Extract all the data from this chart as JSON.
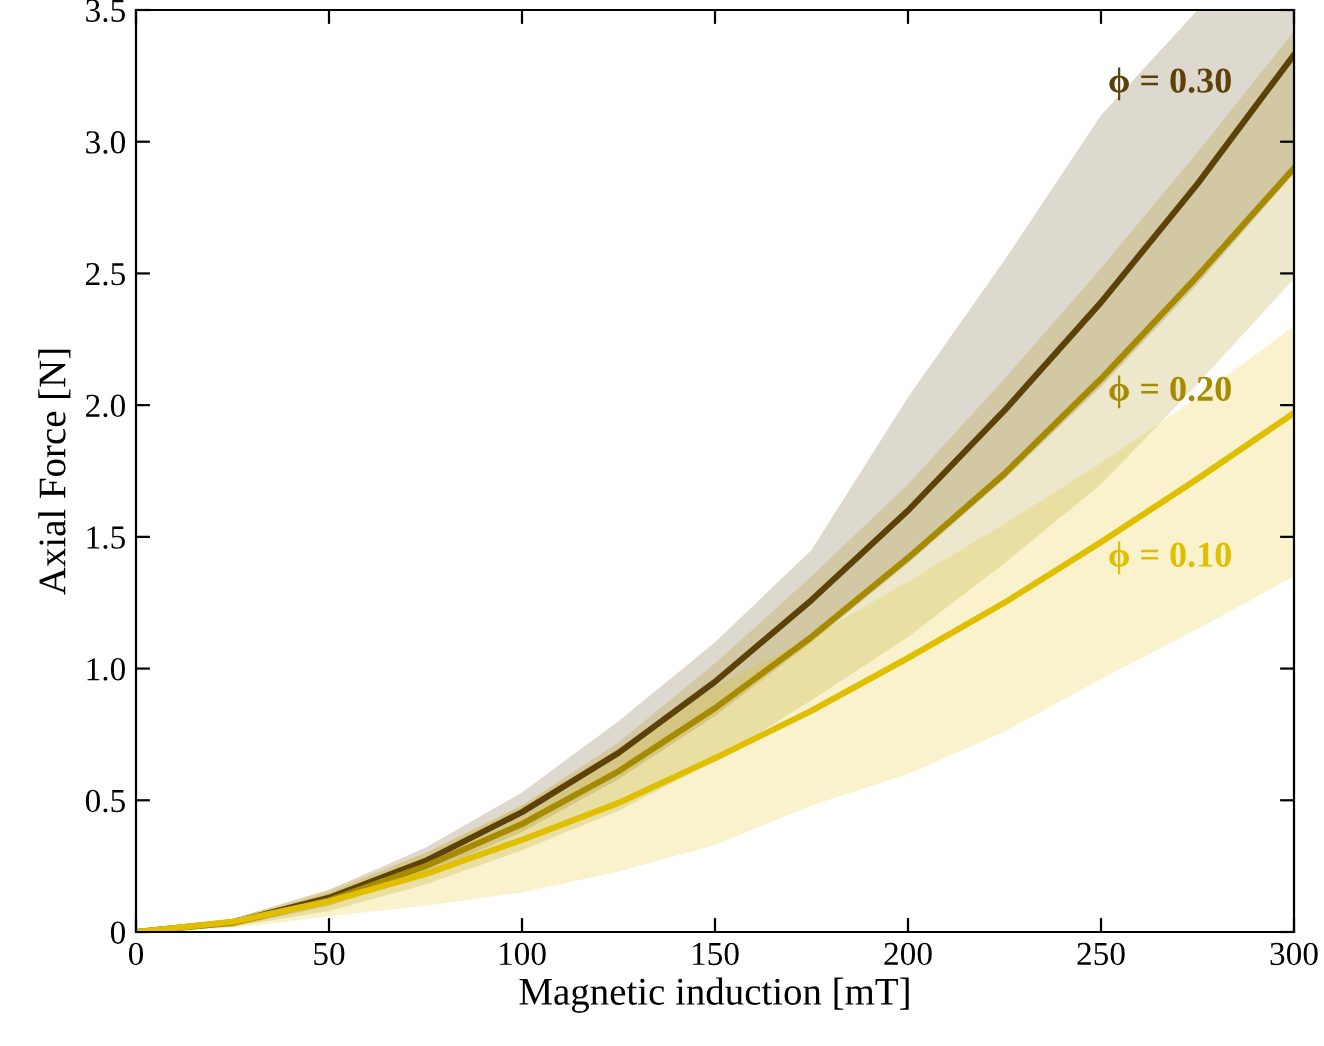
{
  "chart_data": {
    "type": "line",
    "xlabel": "Magnetic induction [mT]",
    "ylabel": "Axial Force [N]",
    "x": [
      0,
      25,
      50,
      75,
      100,
      125,
      150,
      175,
      200,
      225,
      250,
      275,
      300
    ],
    "xlim": [
      0,
      300
    ],
    "ylim": [
      0,
      3.5
    ],
    "xticks": [
      0,
      50,
      100,
      150,
      200,
      250,
      300
    ],
    "yticks": [
      0,
      0.5,
      {
        "value": 1,
        "label": "1.0"
      },
      1.5,
      {
        "value": 2,
        "label": "2.0"
      },
      2.5,
      {
        "value": 3,
        "label": "3.0"
      },
      3.5
    ],
    "grid": false,
    "legend": false,
    "marker": "none",
    "line_style": "solid",
    "series": [
      {
        "name": "ϕ = 0.30",
        "color": "#5c4209",
        "values": [
          0,
          0.037,
          0.13,
          0.27,
          0.455,
          0.68,
          0.95,
          1.26,
          1.6,
          1.98,
          2.39,
          2.84,
          3.33
        ],
        "lower": [
          0,
          0.02,
          0.1,
          0.22,
          0.38,
          0.58,
          0.82,
          1.1,
          1.4,
          1.72,
          2.07,
          2.46,
          2.88
        ],
        "upper": [
          0,
          0.05,
          0.16,
          0.32,
          0.53,
          0.8,
          1.1,
          1.45,
          2.03,
          2.55,
          3.1,
          3.5,
          3.5
        ]
      },
      {
        "name": "ϕ = 0.20",
        "color": "#a68a00",
        "values": [
          0,
          0.035,
          0.12,
          0.25,
          0.41,
          0.61,
          0.85,
          1.12,
          1.42,
          1.74,
          2.1,
          2.49,
          2.9
        ],
        "lower": [
          0,
          0.02,
          0.08,
          0.18,
          0.31,
          0.46,
          0.65,
          0.88,
          1.12,
          1.4,
          1.7,
          2.08,
          2.48
        ],
        "upper": [
          0,
          0.045,
          0.15,
          0.3,
          0.48,
          0.72,
          1.02,
          1.35,
          1.7,
          2.1,
          2.52,
          2.96,
          3.42
        ]
      },
      {
        "name": "ϕ = 0.10",
        "color": "#dfbf00",
        "values": [
          0,
          0.039,
          0.116,
          0.22,
          0.35,
          0.49,
          0.66,
          0.84,
          1.04,
          1.25,
          1.48,
          1.72,
          1.97
        ],
        "lower": [
          0,
          0.015,
          0.06,
          0.1,
          0.15,
          0.23,
          0.33,
          0.48,
          0.6,
          0.76,
          0.96,
          1.15,
          1.35
        ],
        "upper": [
          0,
          0.05,
          0.16,
          0.3,
          0.48,
          0.7,
          0.93,
          1.12,
          1.33,
          1.55,
          1.78,
          2.03,
          2.3
        ]
      }
    ]
  }
}
